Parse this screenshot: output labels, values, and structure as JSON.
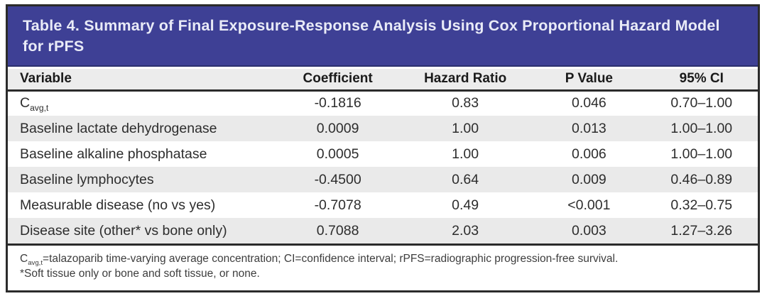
{
  "title": "Table 4. Summary of Final Exposure-Response Analysis Using Cox Proportional Hazard Model for rPFS",
  "columns": [
    "Variable",
    "Coefficient",
    "Hazard Ratio",
    "P Value",
    "95% CI"
  ],
  "rows": [
    {
      "variable": "C",
      "variable_sub": "avg,t",
      "coefficient": "-0.1816",
      "hazard_ratio": "0.83",
      "p_value": "0.046",
      "ci_95": "0.70–1.00"
    },
    {
      "variable": "Baseline lactate dehydrogenase",
      "coefficient": "0.0009",
      "hazard_ratio": "1.00",
      "p_value": "0.013",
      "ci_95": "1.00–1.00"
    },
    {
      "variable": "Baseline alkaline phosphatase",
      "coefficient": "0.0005",
      "hazard_ratio": "1.00",
      "p_value": "0.006",
      "ci_95": "1.00–1.00"
    },
    {
      "variable": "Baseline lymphocytes",
      "coefficient": "-0.4500",
      "hazard_ratio": "0.64",
      "p_value": "0.009",
      "ci_95": "0.46–0.89"
    },
    {
      "variable": "Measurable disease (no vs yes)",
      "coefficient": "-0.7078",
      "hazard_ratio": "0.49",
      "p_value": "<0.001",
      "ci_95": "0.32–0.75"
    },
    {
      "variable": "Disease site (other* vs bone only)",
      "coefficient": "0.7088",
      "hazard_ratio": "2.03",
      "p_value": "0.003",
      "ci_95": "1.27–3.26"
    }
  ],
  "footnotes": {
    "line1_prefix": "C",
    "line1_sub": "avg,t",
    "line1_text": "=talazoparib time-varying average concentration; CI=confidence interval; rPFS=radiographic progression-free survival.",
    "line2": "*Soft tissue only or bone and soft tissue, or none."
  },
  "colors": {
    "header_band": "#3e4095",
    "header_band_border": "#2b2f6e",
    "frame_border": "#2b2b2b",
    "column_header_bg": "#ececec",
    "alt_row_bg": "#eaeaea",
    "title_text": "#e9ebf7"
  }
}
